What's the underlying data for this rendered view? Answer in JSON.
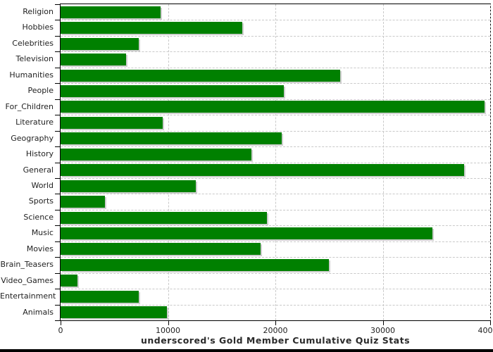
{
  "title": "underscored's Gold Member Cumulative Quiz Stats",
  "colors": {
    "bar": "#008000",
    "bar_shadow": "#cfcfcf",
    "grid": "#c9c9c9",
    "axis": "#000000",
    "text": "#222222",
    "background": "#ffffff",
    "bottom_strip": "#000000"
  },
  "chart_data": {
    "type": "bar",
    "orientation": "horizontal",
    "title": "underscored's Gold Member Cumulative Quiz Stats",
    "xlabel": "",
    "ylabel": "",
    "xlim": [
      0,
      40000
    ],
    "xticks": [
      0,
      10000,
      20000,
      30000,
      40000
    ],
    "xtick_labels": [
      "0",
      "10000",
      "20000",
      "30000",
      "40000"
    ],
    "grid": true,
    "legend": false,
    "categories": [
      "Religion",
      "Hobbies",
      "Celebrities",
      "Television",
      "Humanities",
      "People",
      "For_Children",
      "Literature",
      "Geography",
      "History",
      "General",
      "World",
      "Sports",
      "Science",
      "Music",
      "Movies",
      "Brain_Teasers",
      "Video_Games",
      "Entertainment",
      "Animals"
    ],
    "values": [
      9300,
      16900,
      7250,
      6100,
      26000,
      20800,
      39500,
      9500,
      20600,
      17800,
      37600,
      12600,
      4100,
      19200,
      34600,
      18600,
      25000,
      1600,
      7250,
      9900
    ]
  }
}
